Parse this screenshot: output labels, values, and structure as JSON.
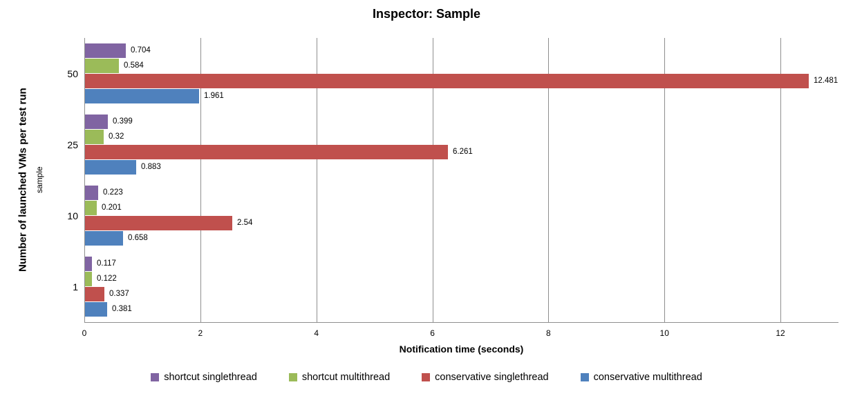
{
  "chart_data": {
    "type": "bar",
    "orientation": "horizontal",
    "title": "Inspector: Sample",
    "xlabel": "Notification time (seconds)",
    "ylabel": "Number of launched VMs per test run",
    "ylabel_sub": "sample",
    "categories": [
      "50",
      "25",
      "10",
      "1"
    ],
    "series": [
      {
        "name": "shortcut singlethread",
        "color": "#8064A2",
        "values": [
          "0.704",
          "0.399",
          "0.223",
          "0.117"
        ]
      },
      {
        "name": "shortcut multithread",
        "color": "#9BBB59",
        "values": [
          "0.584",
          "0.32",
          "0.201",
          "0.122"
        ]
      },
      {
        "name": "conservative singlethread",
        "color": "#C0504D",
        "values": [
          "12.481",
          "6.261",
          "2.54",
          "0.337"
        ]
      },
      {
        "name": "conservative multithread",
        "color": "#4F81BD",
        "values": [
          "1.961",
          "0.883",
          "0.658",
          "0.381"
        ]
      }
    ],
    "xlim": [
      0,
      13
    ],
    "xticks": [
      "0",
      "2",
      "4",
      "6",
      "8",
      "10",
      "12"
    ],
    "grid": true,
    "legend_position": "bottom",
    "colors": {
      "gridline": "#8e8e8e",
      "text": "#000000",
      "background": "#ffffff"
    }
  }
}
